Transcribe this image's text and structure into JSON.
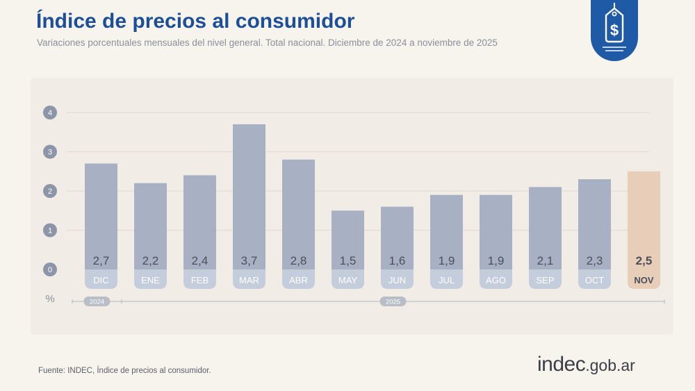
{
  "header": {
    "title": "Índice de precios al consumidor",
    "subtitle": "Variaciones porcentuales mensuales del nivel general. Total nacional. Diciembre de 2024 a noviembre de 2025"
  },
  "badge": {
    "icon": "price-tag-dollar-icon",
    "color": "#1f5aa6"
  },
  "footer": {
    "source": "Fuente: INDEC, Índice de precios al consumidor.",
    "logo_main": "indec",
    "logo_domain": ".gob.ar"
  },
  "chart_data": {
    "type": "bar",
    "title": "Índice de precios al consumidor",
    "subtitle": "Variaciones porcentuales mensuales del nivel general. Total nacional. Diciembre de 2024 a noviembre de 2025",
    "categories": [
      "DIC",
      "ENE",
      "FEB",
      "MAR",
      "ABR",
      "MAY",
      "JUN",
      "JUL",
      "AGO",
      "SEP",
      "OCT",
      "NOV"
    ],
    "values": [
      2.7,
      2.2,
      2.4,
      3.7,
      2.8,
      1.5,
      1.6,
      1.9,
      1.9,
      2.1,
      2.3,
      2.5
    ],
    "value_labels": [
      "2,7",
      "2,2",
      "2,4",
      "3,7",
      "2,8",
      "1,5",
      "1,6",
      "1,9",
      "1,9",
      "2,1",
      "2,3",
      "2,5"
    ],
    "highlight_index": 11,
    "ylabel": "%",
    "yticks": [
      0,
      1,
      2,
      3,
      4
    ],
    "ylim": [
      0,
      4
    ],
    "year_groups": [
      {
        "label": "2024",
        "from_index": 0,
        "to_index": 0
      },
      {
        "label": "2025",
        "from_index": 1,
        "to_index": 11
      }
    ],
    "grid": true,
    "colors": {
      "bar": "#a7b1c3",
      "bar_highlight": "#e8cdb9",
      "label_chip": "#c4cddb",
      "label_chip_highlight": "#e8cdb9",
      "tick_circle": "#8c96a8",
      "text": "#4a4f59",
      "grid": "#dfd9cf"
    }
  }
}
